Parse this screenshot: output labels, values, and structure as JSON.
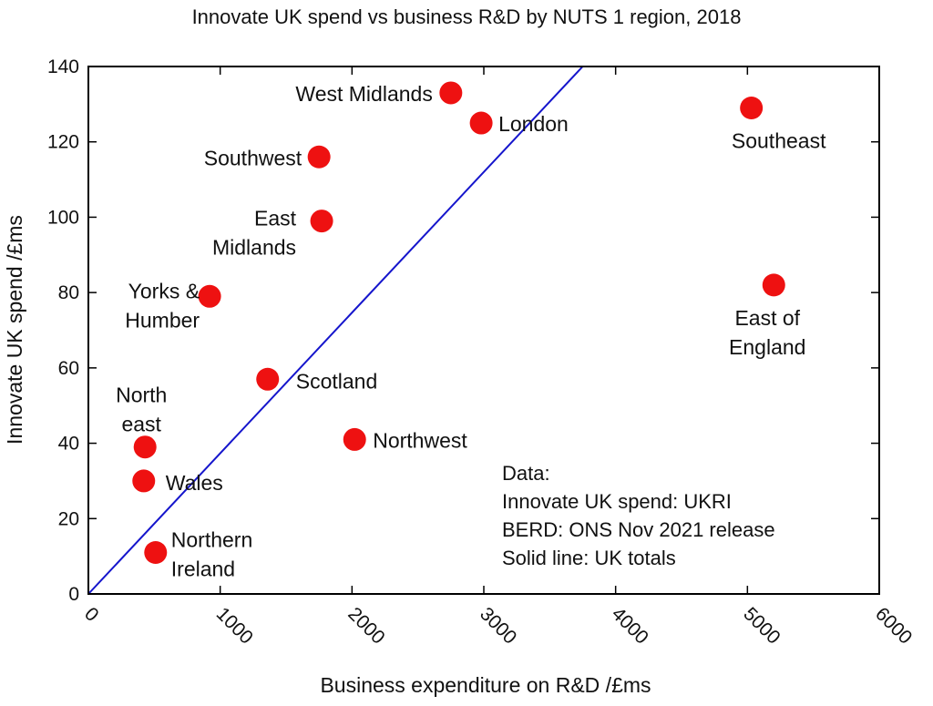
{
  "chart_data": {
    "type": "scatter",
    "title": "Innovate UK spend vs business R&D by NUTS 1 region, 2018",
    "xlabel": "Business expenditure on R&D /£ms",
    "ylabel": "Innovate UK spend /£ms",
    "xlim": [
      0,
      6000
    ],
    "ylim": [
      0,
      140
    ],
    "xticks": [
      "0",
      "1000",
      "2000",
      "3000",
      "4000",
      "5000",
      "6000"
    ],
    "yticks": [
      "0",
      "20",
      "40",
      "60",
      "80",
      "100",
      "120",
      "140"
    ],
    "grid": false,
    "point_color": "#ee1111",
    "line_color": "#1515cc",
    "points": [
      {
        "label": [
          "West Midlands"
        ],
        "x": 2750,
        "y": 133
      },
      {
        "label": [
          "London"
        ],
        "x": 2980,
        "y": 125
      },
      {
        "label": [
          "Southeast"
        ],
        "x": 5030,
        "y": 129
      },
      {
        "label": [
          "Southwest"
        ],
        "x": 1750,
        "y": 116
      },
      {
        "label": [
          "East",
          "Midlands"
        ],
        "x": 1770,
        "y": 99
      },
      {
        "label": [
          "Yorks &",
          "Humber"
        ],
        "x": 920,
        "y": 79
      },
      {
        "label": [
          "East of",
          "England"
        ],
        "x": 5200,
        "y": 82
      },
      {
        "label": [
          "Scotland"
        ],
        "x": 1360,
        "y": 57
      },
      {
        "label": [
          "North",
          "east"
        ],
        "x": 430,
        "y": 39
      },
      {
        "label": [
          "Northwest"
        ],
        "x": 2020,
        "y": 41
      },
      {
        "label": [
          "Wales"
        ],
        "x": 420,
        "y": 30
      },
      {
        "label": [
          "Northern",
          "Ireland"
        ],
        "x": 510,
        "y": 11
      }
    ],
    "reference_line": {
      "label": "Solid line: UK totals",
      "from": [
        0,
        0
      ],
      "to": [
        3750,
        140
      ]
    },
    "annotation": [
      "Data:",
      "Innovate UK spend: UKRI",
      "BERD: ONS Nov 2021 release",
      "Solid line: UK totals"
    ]
  }
}
